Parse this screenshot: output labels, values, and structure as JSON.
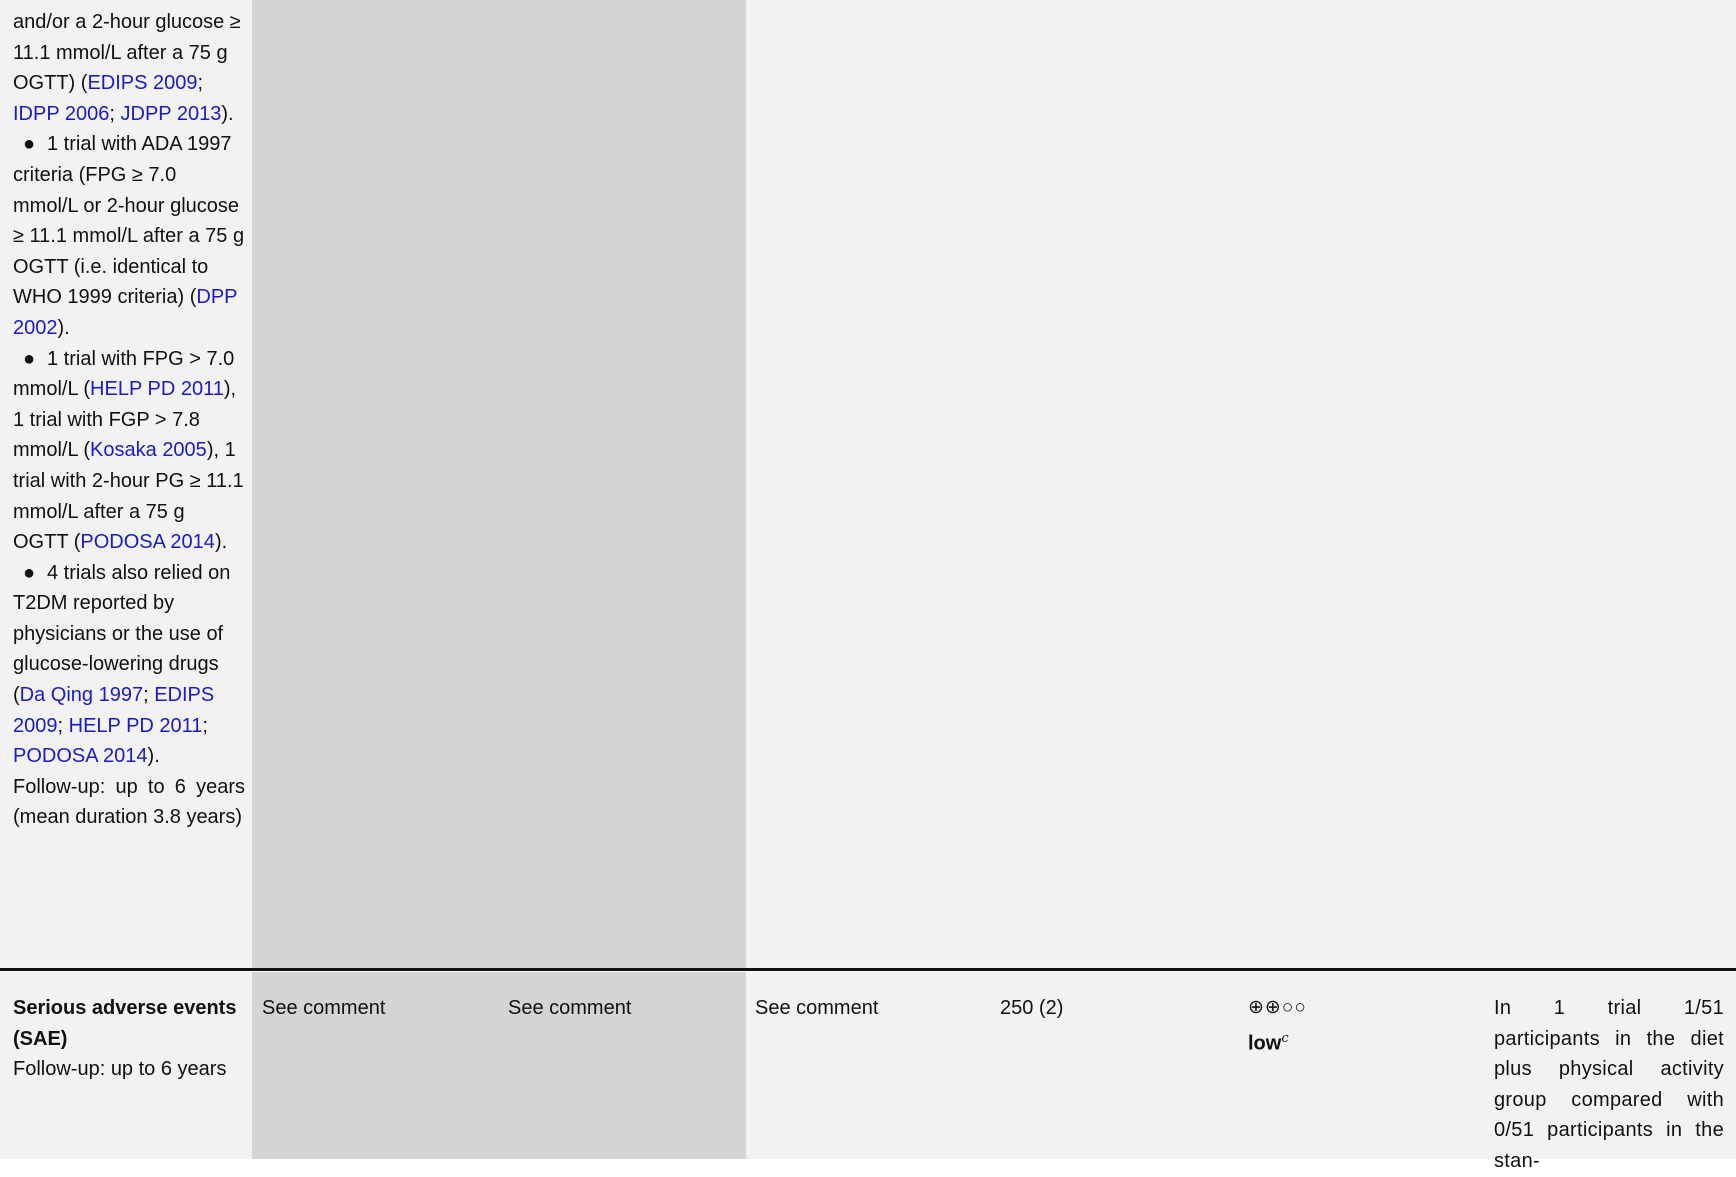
{
  "top_row": {
    "intro": {
      "p1": "and/or a 2-hour glucose ≥ 11.1 mmol/L after a 75 g OGTT) (",
      "refs": [
        "EDIPS 2009",
        "IDPP 2006",
        "JDPP 2013"
      ],
      "end": ")."
    },
    "bullet_symbol": "●",
    "bullet1": {
      "text": "1 trial with ADA 1997 criteria (FPG ≥ 7.0 mmol/L or 2-hour glucose ≥ 11.1 mmol/L after a 75 g OGTT (i.e. identical to WHO 1999 criteria) (",
      "ref": "DPP 2002",
      "end": ")."
    },
    "bullet2": {
      "a": "1 trial with FPG > 7.0 mmol/L (",
      "ref1": "HELP PD 2011",
      "b": "), 1 trial with FGP > 7.8 mmol/L (",
      "ref2": "Kosaka 2005",
      "c": "), 1 trial with 2-hour PG ≥ 11.1 mmol/L after a 75 g OGTT (",
      "ref3": "PODOSA 2014",
      "end": ")."
    },
    "bullet3": {
      "text": "4 trials also relied on T2DM reported by physicians or the use of glucose-lowering drugs (",
      "refs": [
        "Da Qing 1997",
        "EDIPS 2009",
        "HELP PD 2011",
        "PODOSA 2014"
      ],
      "end": ")."
    },
    "followup": "Follow-up: up to 6 years (mean duration 3.8 years)",
    "sep": "; "
  },
  "sae_row": {
    "outcome_name": "Serious adverse events (SAE)",
    "outcome_followup": "Follow-up: up to 6 years",
    "assumed_risk": "See comment",
    "corresponding_risk": "See comment",
    "relative_effect": "See comment",
    "participants": "250 (2)",
    "certainty_symbols": "⊕⊕○○",
    "certainty_level": "low",
    "certainty_footnote": "c",
    "comment": "In 1 trial 1/51 participants in the diet plus physical activity group compared with 0/51 participants in the stan-"
  }
}
